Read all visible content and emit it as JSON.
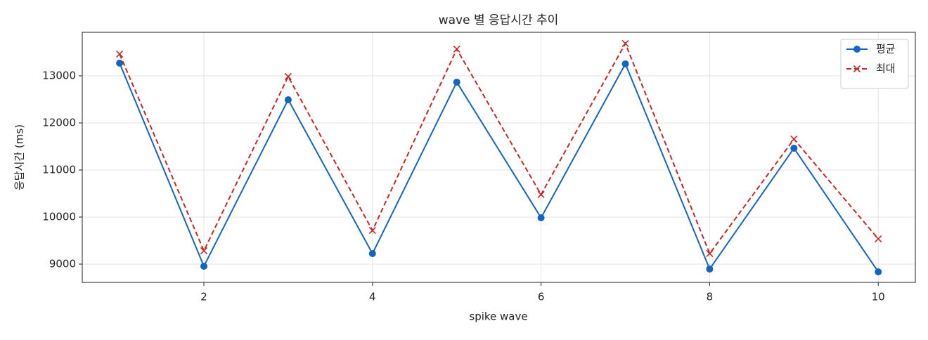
{
  "chart_data": {
    "type": "line",
    "title": "wave 별 응답시간 추이",
    "x_label": "spike wave",
    "y_label": "응답시간 (ms)",
    "x": [
      1,
      2,
      3,
      4,
      5,
      6,
      7,
      8,
      9,
      10
    ],
    "series": [
      {
        "name": "평균",
        "color": "#1565c0",
        "marker": "o",
        "linestyle": "solid",
        "values": [
          13270,
          8955,
          12493,
          9224,
          12866,
          9985,
          13254,
          8896,
          11463,
          8836
        ]
      },
      {
        "name": "최대",
        "color": "#c62828",
        "marker": "x",
        "linestyle": "dashed",
        "values": [
          13463,
          9284,
          12985,
          9716,
          13567,
          10478,
          13687,
          9224,
          11657,
          9537
        ]
      }
    ],
    "xlim": [
      0.557,
      10.44
    ],
    "ylim": [
      8612,
      13925
    ],
    "xticks": [
      2,
      4,
      6,
      8,
      10
    ],
    "yticks": [
      9000,
      10000,
      11000,
      12000,
      13000
    ],
    "grid": true,
    "legend": "upper right"
  }
}
